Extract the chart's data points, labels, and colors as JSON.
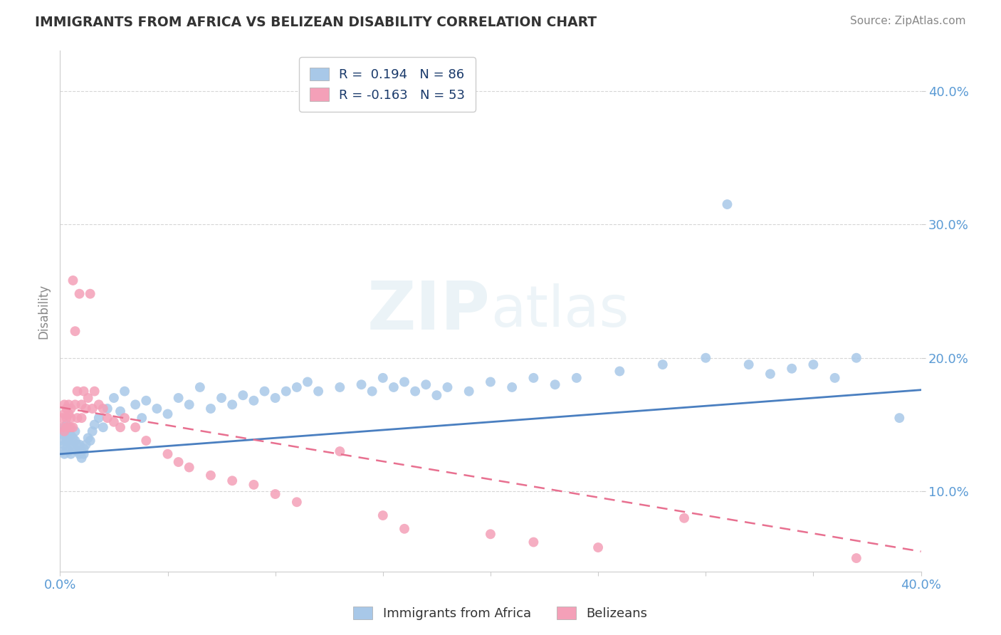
{
  "title": "IMMIGRANTS FROM AFRICA VS BELIZEAN DISABILITY CORRELATION CHART",
  "source_text": "Source: ZipAtlas.com",
  "watermark": "ZIPatlas",
  "ylabel": "Disability",
  "xlim": [
    0.0,
    0.4
  ],
  "ylim": [
    0.04,
    0.43
  ],
  "yticks": [
    0.1,
    0.2,
    0.3,
    0.4
  ],
  "ytick_labels": [
    "10.0%",
    "20.0%",
    "30.0%",
    "40.0%"
  ],
  "xticks": [
    0.0,
    0.05,
    0.1,
    0.15,
    0.2,
    0.25,
    0.3,
    0.35,
    0.4
  ],
  "xtick_labels": [
    "0.0%",
    "",
    "",
    "",
    "",
    "",
    "",
    "",
    "40.0%"
  ],
  "series1_color": "#a8c8e8",
  "series2_color": "#f4a0b8",
  "trend1_color": "#4a7fc0",
  "trend2_color": "#e87090",
  "R1": 0.194,
  "N1": 86,
  "R2": -0.163,
  "N2": 53,
  "legend_label1": "Immigrants from Africa",
  "legend_label2": "Belizeans",
  "background_color": "#ffffff",
  "grid_color": "#cccccc",
  "title_color": "#333333",
  "axis_color": "#5b9bd5",
  "series1_x": [
    0.001,
    0.001,
    0.001,
    0.002,
    0.002,
    0.002,
    0.002,
    0.003,
    0.003,
    0.003,
    0.003,
    0.004,
    0.004,
    0.004,
    0.005,
    0.005,
    0.005,
    0.006,
    0.006,
    0.007,
    0.007,
    0.008,
    0.008,
    0.009,
    0.009,
    0.01,
    0.01,
    0.011,
    0.011,
    0.012,
    0.013,
    0.014,
    0.015,
    0.016,
    0.018,
    0.02,
    0.022,
    0.025,
    0.028,
    0.03,
    0.035,
    0.038,
    0.04,
    0.045,
    0.05,
    0.055,
    0.06,
    0.065,
    0.07,
    0.075,
    0.08,
    0.085,
    0.09,
    0.095,
    0.1,
    0.105,
    0.11,
    0.115,
    0.12,
    0.13,
    0.14,
    0.145,
    0.15,
    0.155,
    0.16,
    0.165,
    0.17,
    0.175,
    0.18,
    0.19,
    0.2,
    0.21,
    0.22,
    0.23,
    0.24,
    0.26,
    0.28,
    0.3,
    0.31,
    0.32,
    0.33,
    0.34,
    0.35,
    0.36,
    0.37,
    0.39
  ],
  "series1_y": [
    0.13,
    0.138,
    0.145,
    0.128,
    0.135,
    0.142,
    0.148,
    0.132,
    0.138,
    0.145,
    0.15,
    0.13,
    0.138,
    0.145,
    0.128,
    0.135,
    0.142,
    0.132,
    0.14,
    0.138,
    0.145,
    0.13,
    0.135,
    0.128,
    0.135,
    0.13,
    0.125,
    0.132,
    0.128,
    0.135,
    0.14,
    0.138,
    0.145,
    0.15,
    0.155,
    0.148,
    0.162,
    0.17,
    0.16,
    0.175,
    0.165,
    0.155,
    0.168,
    0.162,
    0.158,
    0.17,
    0.165,
    0.178,
    0.162,
    0.17,
    0.165,
    0.172,
    0.168,
    0.175,
    0.17,
    0.175,
    0.178,
    0.182,
    0.175,
    0.178,
    0.18,
    0.175,
    0.185,
    0.178,
    0.182,
    0.175,
    0.18,
    0.172,
    0.178,
    0.175,
    0.182,
    0.178,
    0.185,
    0.18,
    0.185,
    0.19,
    0.195,
    0.2,
    0.315,
    0.195,
    0.188,
    0.192,
    0.195,
    0.185,
    0.2,
    0.155
  ],
  "series2_x": [
    0.001,
    0.001,
    0.002,
    0.002,
    0.002,
    0.003,
    0.003,
    0.003,
    0.004,
    0.004,
    0.004,
    0.005,
    0.005,
    0.005,
    0.006,
    0.006,
    0.007,
    0.007,
    0.008,
    0.008,
    0.009,
    0.01,
    0.01,
    0.011,
    0.012,
    0.013,
    0.014,
    0.015,
    0.016,
    0.018,
    0.02,
    0.022,
    0.025,
    0.028,
    0.03,
    0.035,
    0.04,
    0.05,
    0.055,
    0.06,
    0.07,
    0.08,
    0.09,
    0.1,
    0.11,
    0.13,
    0.15,
    0.16,
    0.2,
    0.22,
    0.25,
    0.29,
    0.37
  ],
  "series2_y": [
    0.148,
    0.155,
    0.145,
    0.158,
    0.165,
    0.148,
    0.155,
    0.162,
    0.148,
    0.158,
    0.165,
    0.148,
    0.155,
    0.162,
    0.148,
    0.258,
    0.22,
    0.165,
    0.155,
    0.175,
    0.248,
    0.165,
    0.155,
    0.175,
    0.162,
    0.17,
    0.248,
    0.162,
    0.175,
    0.165,
    0.162,
    0.155,
    0.152,
    0.148,
    0.155,
    0.148,
    0.138,
    0.128,
    0.122,
    0.118,
    0.112,
    0.108,
    0.105,
    0.098,
    0.092,
    0.13,
    0.082,
    0.072,
    0.068,
    0.062,
    0.058,
    0.08,
    0.05
  ],
  "trend1_slope": 0.12,
  "trend1_intercept": 0.128,
  "trend2_slope": -0.27,
  "trend2_intercept": 0.163
}
